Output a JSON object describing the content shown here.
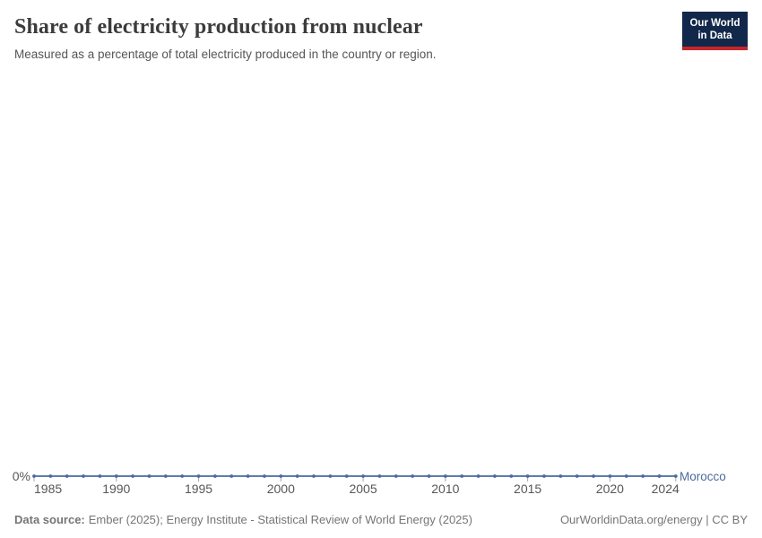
{
  "header": {
    "title": "Share of electricity production from nuclear",
    "subtitle": "Measured as a percentage of total electricity produced in the country or region.",
    "logo_line1": "Our World",
    "logo_line2": "in Data"
  },
  "chart_data": {
    "type": "line",
    "title": "Share of electricity production from nuclear",
    "subtitle": "Measured as a percentage of total electricity produced in the country or region.",
    "x": [
      1985,
      1986,
      1987,
      1988,
      1989,
      1990,
      1991,
      1992,
      1993,
      1994,
      1995,
      1996,
      1997,
      1998,
      1999,
      2000,
      2001,
      2002,
      2003,
      2004,
      2005,
      2006,
      2007,
      2008,
      2009,
      2010,
      2011,
      2012,
      2013,
      2014,
      2015,
      2016,
      2017,
      2018,
      2019,
      2020,
      2021,
      2022,
      2023,
      2024
    ],
    "series": [
      {
        "name": "Morocco",
        "color": "#4C6A9C",
        "values": [
          0,
          0,
          0,
          0,
          0,
          0,
          0,
          0,
          0,
          0,
          0,
          0,
          0,
          0,
          0,
          0,
          0,
          0,
          0,
          0,
          0,
          0,
          0,
          0,
          0,
          0,
          0,
          0,
          0,
          0,
          0,
          0,
          0,
          0,
          0,
          0,
          0,
          0,
          0,
          0
        ]
      }
    ],
    "x_tick_labels": [
      "1985",
      "1990",
      "1995",
      "2000",
      "2005",
      "2010",
      "2015",
      "2020",
      "2024"
    ],
    "y_tick_labels": [
      "0%"
    ],
    "xlabel": "",
    "ylabel": "",
    "ylim": [
      0,
      100
    ],
    "grid": false,
    "legend": "end-of-line-label",
    "marker": "dot"
  },
  "footer": {
    "source_label": "Data source:",
    "source_text": "Ember (2025); Energy Institute - Statistical Review of World Energy (2025)",
    "right_text": "OurWorldinData.org/energy | CC BY"
  },
  "colors": {
    "line": "#4C6A9C",
    "axis_text": "#575757",
    "tick_mark": "#a5a5a5",
    "title_text": "#3c3c3c",
    "logo_bg": "#12284a",
    "logo_bar": "#c5262c"
  }
}
